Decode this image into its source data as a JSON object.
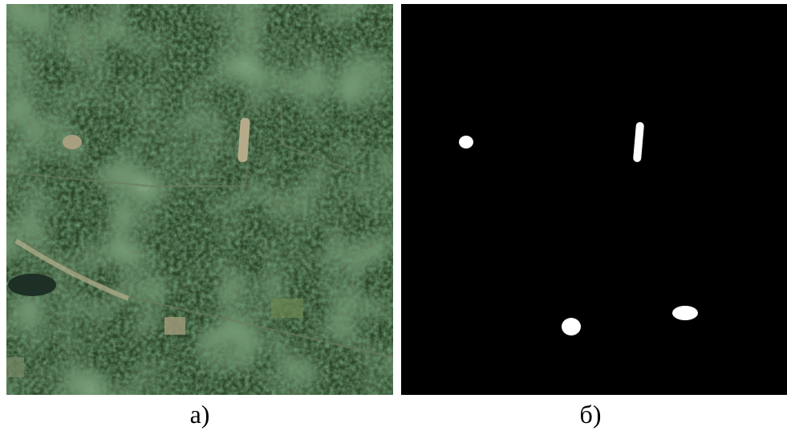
{
  "figure": {
    "panels": [
      {
        "label": "а)"
      },
      {
        "label": "б)"
      }
    ]
  }
}
